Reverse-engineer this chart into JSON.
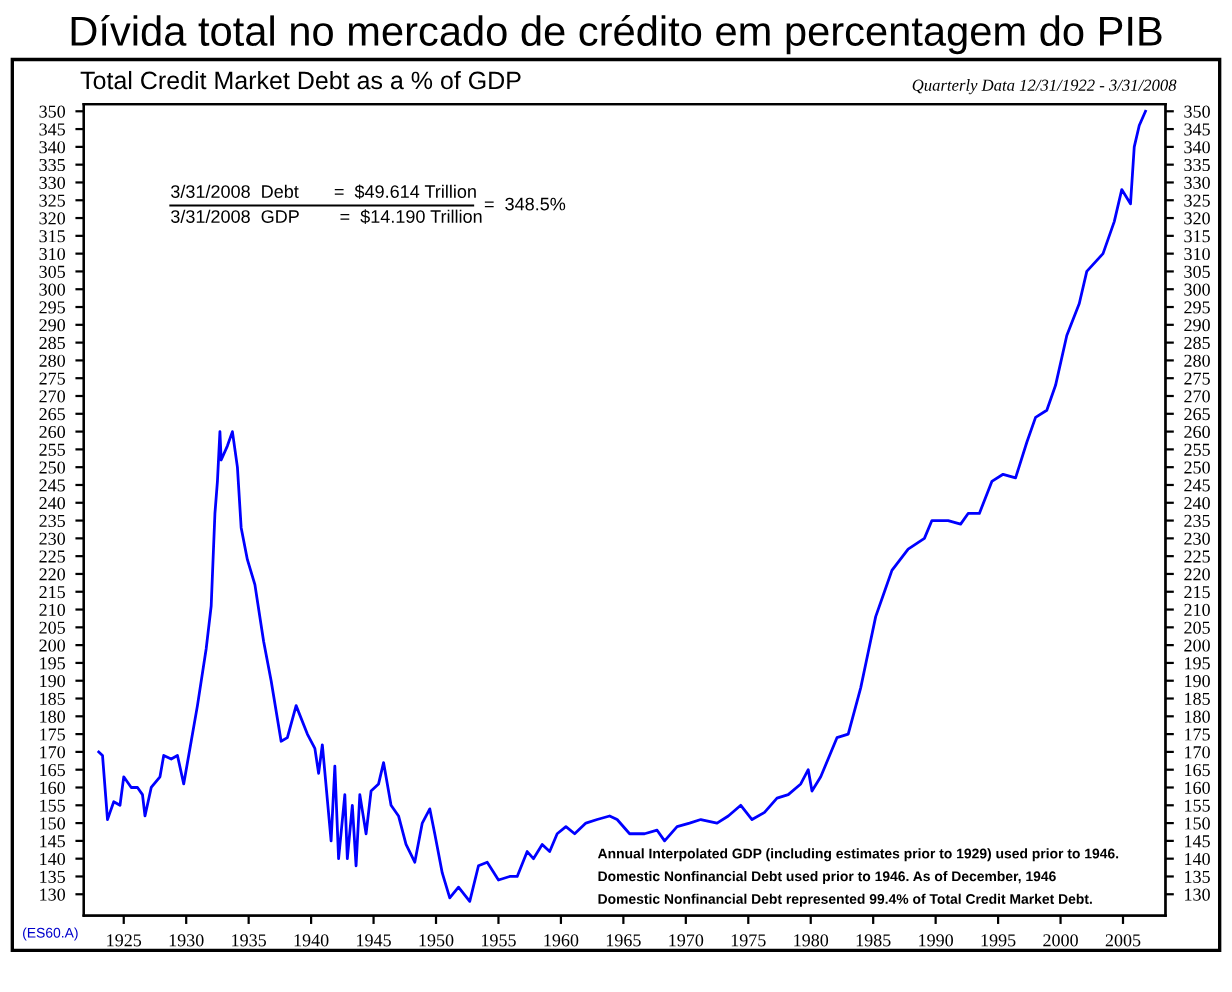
{
  "chart_data": {
    "type": "line",
    "title": "Dívida total no mercado de crédito em percentagem do PIB",
    "subtitle": "Total Credit Market Debt as a % of GDP",
    "annotations": [
      "Quarterly Data 12/31/1922 - 3/31/2008",
      "3/31/2008  Debt       =  $49.614 Trillion",
      "3/31/2008  GDP        =  $14.190 Trillion",
      "=  348.5%",
      "Annual Interpolated GDP (including estimates prior to 1929) used prior to 1946.",
      "Domestic Nonfinancial Debt used prior to 1946. As of December, 1946",
      "Domestic Nonfinancial Debt represented 99.4% of Total Credit Market Debt.",
      "(ES60.A)"
    ],
    "series": [
      {
        "color": "#0000ff",
        "x": [
          1923.0,
          1923.3,
          1923.7,
          1923.9,
          1924.2,
          1924.7,
          1925.0,
          1925.6,
          1926.1,
          1926.5,
          1926.7,
          1927.2,
          1927.9,
          1928.2,
          1928.8,
          1929.3,
          1929.8,
          1930.4,
          1930.9,
          1931.6,
          1932.0,
          1932.3,
          1932.5,
          1932.7,
          1932.8,
          1933.3,
          1933.7,
          1934.1,
          1934.4,
          1934.9,
          1935.5,
          1936.2,
          1936.8,
          1937.6,
          1938.1,
          1938.8,
          1939.7,
          1940.3,
          1940.6,
          1940.9,
          1941.6,
          1941.9,
          1942.2,
          1942.7,
          1942.9,
          1943.3,
          1943.6,
          1943.9,
          1944.4,
          1944.8,
          1945.4,
          1945.8,
          1946.4,
          1947.0,
          1947.6,
          1948.3,
          1948.9,
          1949.5,
          1949.9,
          1950.5,
          1951.1,
          1951.8,
          1952.7,
          1953.4,
          1954.1,
          1955.0,
          1955.9,
          1956.5,
          1957.3,
          1957.8,
          1958.5,
          1959.1,
          1959.7,
          1960.4,
          1961.1,
          1962.0,
          1962.9,
          1963.9,
          1964.5,
          1965.5,
          1966.7,
          1967.7,
          1968.3,
          1969.3,
          1970.3,
          1971.2,
          1972.5,
          1973.4,
          1974.4,
          1975.3,
          1976.3,
          1977.3,
          1978.2,
          1979.2,
          1979.8,
          1980.1,
          1980.8,
          1982.1,
          1983.0,
          1984.0,
          1984.6,
          1985.2,
          1985.9,
          1986.5,
          1987.8,
          1989.1,
          1989.7,
          1991.0,
          1992.0,
          1992.6,
          1993.5,
          1994.5,
          1995.4,
          1996.4,
          1997.3,
          1998.0,
          1998.9,
          1999.6,
          2000.5,
          2001.5,
          2002.1,
          2003.4,
          2004.3,
          2004.9,
          2005.6,
          2005.9,
          2006.3,
          2006.8
        ],
        "values": [
          170,
          169,
          151,
          153,
          156,
          155,
          163,
          160,
          160,
          158,
          152,
          160,
          163,
          169,
          168,
          169,
          161,
          173,
          183,
          199,
          211,
          237,
          246,
          260,
          252,
          256,
          260,
          250,
          233,
          224,
          217,
          201,
          190,
          173,
          174,
          183,
          175,
          171,
          164,
          172,
          145,
          166,
          140,
          158,
          140,
          155,
          138,
          158,
          147,
          159,
          161,
          167,
          155,
          152,
          144,
          139,
          150,
          154,
          147,
          136,
          129,
          132,
          128,
          138,
          139,
          134,
          135,
          135,
          142,
          140,
          144,
          142,
          147,
          149,
          147,
          150,
          151,
          152,
          151,
          147,
          147,
          148,
          145,
          149,
          150,
          151,
          150,
          152,
          155,
          151,
          153,
          157,
          158,
          161,
          165,
          159,
          163,
          174,
          175,
          188,
          198,
          208,
          215,
          221,
          227,
          230,
          235,
          235,
          234,
          237,
          237,
          246,
          248,
          247,
          257,
          264,
          266,
          273,
          287,
          296,
          305,
          310,
          319,
          328,
          324,
          340,
          346,
          350
        ]
      }
    ],
    "xlim": [
      1921.8,
      2008.4
    ],
    "xticks": [
      1925,
      1930,
      1935,
      1940,
      1945,
      1950,
      1955,
      1960,
      1965,
      1970,
      1975,
      1980,
      1985,
      1990,
      1995,
      2000,
      2005
    ],
    "ylim": [
      124,
      352
    ],
    "yticks": [
      130,
      135,
      140,
      145,
      150,
      155,
      160,
      165,
      170,
      175,
      180,
      185,
      190,
      195,
      200,
      205,
      210,
      215,
      220,
      225,
      230,
      235,
      240,
      245,
      250,
      255,
      260,
      265,
      270,
      275,
      280,
      285,
      290,
      295,
      300,
      305,
      310,
      315,
      320,
      325,
      330,
      335,
      340,
      345,
      350
    ],
    "y2lim": [
      124,
      352
    ],
    "y2ticks": [
      130,
      135,
      140,
      145,
      150,
      155,
      160,
      165,
      170,
      175,
      180,
      185,
      190,
      195,
      200,
      205,
      210,
      215,
      220,
      225,
      230,
      235,
      240,
      245,
      250,
      255,
      260,
      265,
      270,
      275,
      280,
      285,
      290,
      295,
      300,
      305,
      310,
      315,
      320,
      325,
      330,
      335,
      340,
      345,
      350
    ],
    "grid": false,
    "legend": false
  }
}
